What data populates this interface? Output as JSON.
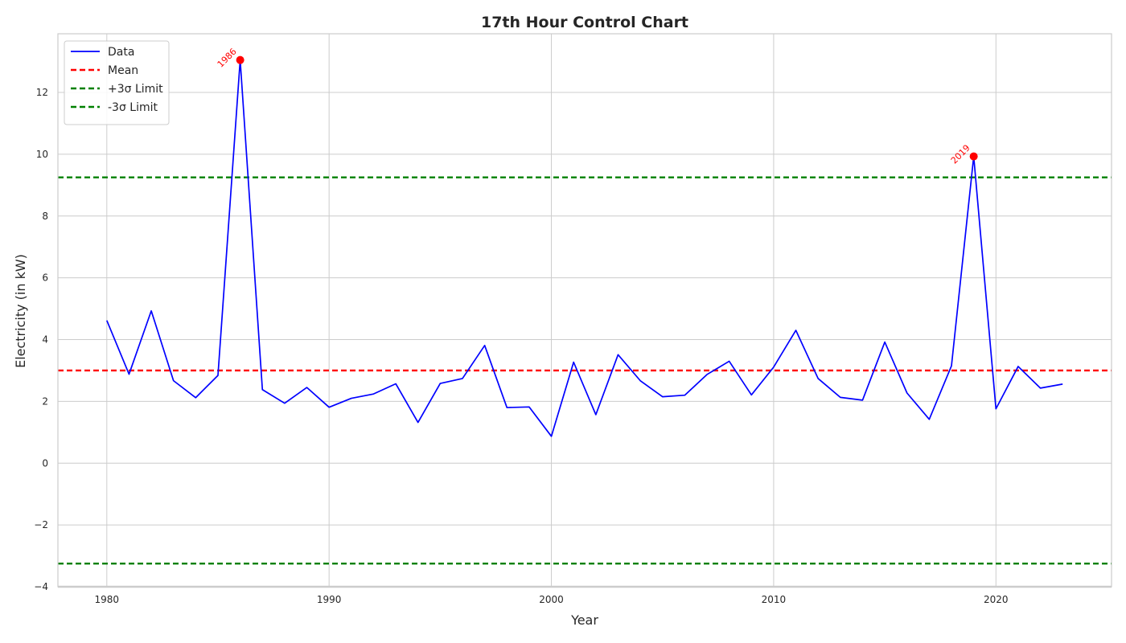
{
  "chart_data": {
    "type": "line",
    "title": "17th Hour Control Chart",
    "xlabel": "Year",
    "ylabel": "Electricity (in kW)",
    "xlim": [
      1977.8,
      2025.2
    ],
    "ylim": [
      -4,
      13.9
    ],
    "x_ticks": [
      1980,
      1990,
      2000,
      2010,
      2020
    ],
    "y_ticks": [
      -4,
      -2,
      0,
      2,
      4,
      6,
      8,
      10,
      12
    ],
    "y_tick_labels": [
      "−4",
      "−2",
      "0",
      "2",
      "4",
      "6",
      "8",
      "10",
      "12"
    ],
    "grid": true,
    "legend_placement": "top-left",
    "series": [
      {
        "name": "Data",
        "color": "#0000ff",
        "x": [
          1980,
          1981,
          1982,
          1983,
          1984,
          1985,
          1986,
          1987,
          1988,
          1989,
          1990,
          1991,
          1992,
          1993,
          1994,
          1995,
          1996,
          1997,
          1998,
          1999,
          2000,
          2001,
          2002,
          2003,
          2004,
          2005,
          2006,
          2007,
          2008,
          2009,
          2010,
          2011,
          2012,
          2013,
          2014,
          2015,
          2016,
          2017,
          2018,
          2019,
          2020,
          2021,
          2022,
          2023
        ],
        "y": [
          4.62,
          2.88,
          4.93,
          2.67,
          2.12,
          2.84,
          13.05,
          2.38,
          1.94,
          2.45,
          1.81,
          2.1,
          2.24,
          2.57,
          1.32,
          2.58,
          2.74,
          3.81,
          1.8,
          1.82,
          0.87,
          3.27,
          1.57,
          3.51,
          2.67,
          2.15,
          2.2,
          2.87,
          3.3,
          2.21,
          3.11,
          4.3,
          2.74,
          2.13,
          2.04,
          3.92,
          2.27,
          1.42,
          3.15,
          9.93,
          1.76,
          3.13,
          2.43,
          2.56
        ]
      }
    ],
    "reference_lines": [
      {
        "name": "Mean",
        "value": 3.0,
        "color": "#ff0000"
      },
      {
        "name": "+3σ Limit",
        "value": 9.25,
        "color": "#008000"
      },
      {
        "name": "-3σ Limit",
        "value": -3.25,
        "color": "#008000"
      }
    ],
    "outliers": [
      {
        "x": 1986,
        "y": 13.05,
        "label": "1986"
      },
      {
        "x": 2019,
        "y": 9.93,
        "label": "2019"
      }
    ],
    "outlier_color": "#ff0000"
  }
}
